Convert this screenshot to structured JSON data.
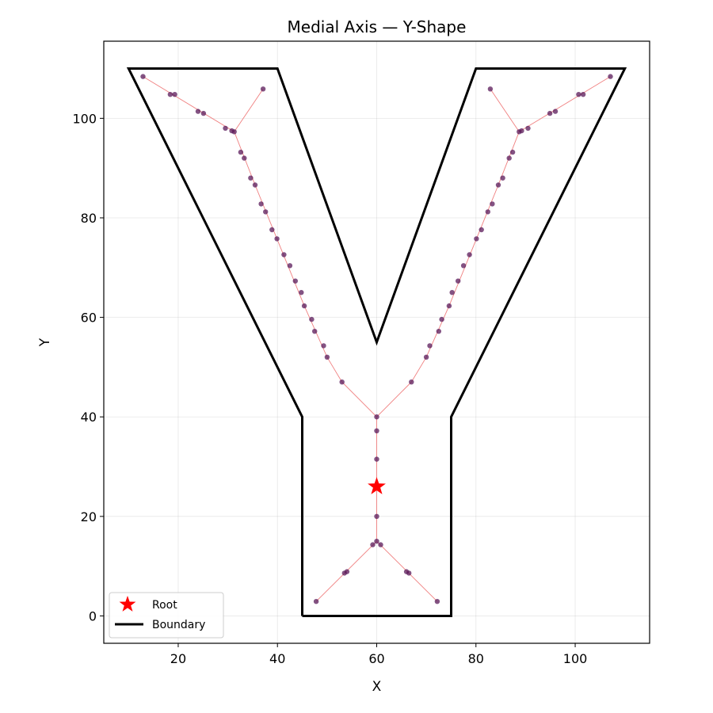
{
  "chart_data": {
    "type": "scatter",
    "title": "Medial Axis — Y-Shape",
    "xlabel": "X",
    "ylabel": "Y",
    "xlim": [
      5,
      115
    ],
    "ylim": [
      -5.5,
      115.5
    ],
    "xticks": [
      20,
      40,
      60,
      80,
      100
    ],
    "yticks": [
      0,
      20,
      40,
      60,
      80,
      100
    ],
    "grid": true,
    "legend_position": "lower-left",
    "colors": {
      "boundary": "#000000",
      "edges": "#f08080",
      "nodes": "#5a1a5a",
      "root": "#ff0000"
    },
    "boundary": {
      "name": "Boundary",
      "points": [
        [
          45,
          0
        ],
        [
          75,
          0
        ],
        [
          75,
          40
        ],
        [
          110,
          110
        ],
        [
          80,
          110
        ],
        [
          60,
          55
        ],
        [
          40,
          110
        ],
        [
          10,
          110
        ],
        [
          45,
          40
        ],
        [
          45,
          0
        ]
      ]
    },
    "root": {
      "name": "Root",
      "x": 60,
      "y": 26
    },
    "nodes": [
      [
        60,
        40
      ],
      [
        60,
        37.2
      ],
      [
        60,
        31.5
      ],
      [
        60,
        20
      ],
      [
        60,
        15
      ],
      [
        59.2,
        14.3
      ],
      [
        60.8,
        14.3
      ],
      [
        53.5,
        8.6
      ],
      [
        54,
        8.9
      ],
      [
        47.8,
        2.9
      ],
      [
        66,
        8.9
      ],
      [
        66.5,
        8.6
      ],
      [
        72.2,
        2.9
      ],
      [
        53,
        47
      ],
      [
        50,
        52
      ],
      [
        49.3,
        54.3
      ],
      [
        47.5,
        57.2
      ],
      [
        46.9,
        59.6
      ],
      [
        45.4,
        62.3
      ],
      [
        44.8,
        65
      ],
      [
        43.6,
        67.3
      ],
      [
        42.5,
        70.4
      ],
      [
        41.3,
        72.6
      ],
      [
        39.9,
        75.8
      ],
      [
        38.9,
        77.6
      ],
      [
        37.6,
        81.2
      ],
      [
        36.7,
        82.8
      ],
      [
        35.5,
        86.6
      ],
      [
        34.6,
        88
      ],
      [
        33.3,
        92
      ],
      [
        32.6,
        93.2
      ],
      [
        31.3,
        97.3
      ],
      [
        30.8,
        97.5
      ],
      [
        29.5,
        98
      ],
      [
        25.1,
        101
      ],
      [
        24,
        101.4
      ],
      [
        19.3,
        104.8
      ],
      [
        18.4,
        104.8
      ],
      [
        12.9,
        108.4
      ],
      [
        37.1,
        105.9
      ],
      [
        67,
        47
      ],
      [
        70,
        52
      ],
      [
        70.7,
        54.3
      ],
      [
        72.5,
        57.2
      ],
      [
        73.1,
        59.6
      ],
      [
        74.6,
        62.3
      ],
      [
        75.2,
        65
      ],
      [
        76.4,
        67.3
      ],
      [
        77.5,
        70.4
      ],
      [
        78.7,
        72.6
      ],
      [
        80.1,
        75.8
      ],
      [
        81.1,
        77.6
      ],
      [
        82.4,
        81.2
      ],
      [
        83.3,
        82.8
      ],
      [
        84.5,
        86.6
      ],
      [
        85.4,
        88
      ],
      [
        86.7,
        92
      ],
      [
        87.4,
        93.2
      ],
      [
        88.7,
        97.3
      ],
      [
        89.2,
        97.5
      ],
      [
        90.5,
        98
      ],
      [
        94.9,
        101
      ],
      [
        96,
        101.4
      ],
      [
        100.7,
        104.8
      ],
      [
        101.6,
        104.8
      ],
      [
        107.1,
        108.4
      ],
      [
        82.9,
        105.9
      ]
    ],
    "edges": [
      [
        [
          60,
          15
        ],
        [
          60,
          40
        ]
      ],
      [
        [
          60,
          15
        ],
        [
          47.8,
          2.9
        ]
      ],
      [
        [
          60,
          15
        ],
        [
          72.2,
          2.9
        ]
      ],
      [
        [
          60,
          40
        ],
        [
          53,
          47
        ],
        [
          50,
          52
        ],
        [
          45.4,
          62.3
        ],
        [
          39.9,
          75.8
        ],
        [
          35.5,
          86.6
        ],
        [
          31.3,
          97.3
        ]
      ],
      [
        [
          31.3,
          97.3
        ],
        [
          12.9,
          108.4
        ]
      ],
      [
        [
          31.3,
          97.3
        ],
        [
          37.1,
          105.9
        ]
      ],
      [
        [
          60,
          40
        ],
        [
          67,
          47
        ],
        [
          70,
          52
        ],
        [
          74.6,
          62.3
        ],
        [
          80.1,
          75.8
        ],
        [
          84.5,
          86.6
        ],
        [
          88.7,
          97.3
        ]
      ],
      [
        [
          88.7,
          97.3
        ],
        [
          107.1,
          108.4
        ]
      ],
      [
        [
          88.7,
          97.3
        ],
        [
          82.9,
          105.9
        ]
      ]
    ]
  }
}
